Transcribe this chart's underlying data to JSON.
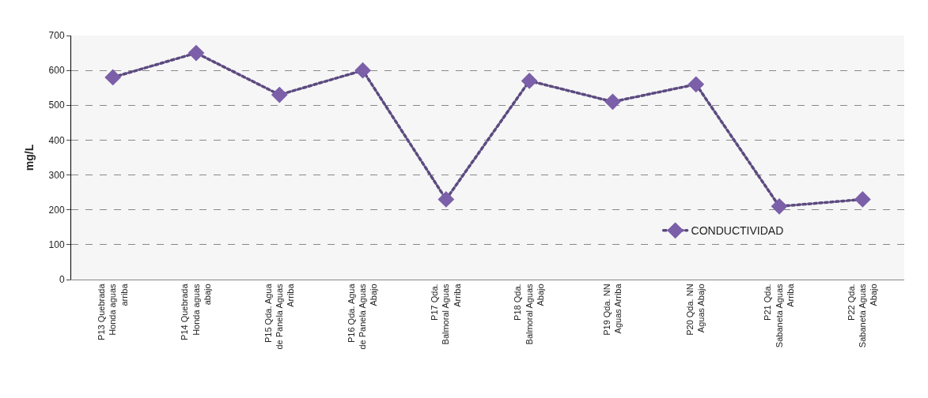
{
  "chart_data": {
    "type": "line",
    "ylabel": "mg/L",
    "categories": [
      "P13 Quebrada Honda aguas arriba",
      "P14 Quebrada Honda aguas abajo",
      "P15 Qda. Agua de Panela Aguas Arriba",
      "P16 Qda. Agua de Panela Aguas Abajo",
      "P17 Qda. Balmoral Aguas Arriba",
      "P18 Qda. Balmoral Aguas Abajo",
      "P19 Qda. NN Aguas Arriba",
      "P20 Qda. NN Aguas Abajo",
      "P21 Qda. Sabaneta Aguas Arriba",
      "P22 Qda. Sabaneta Aguas Abajo"
    ],
    "series": [
      {
        "name": "CONDUCTIVIDAD",
        "color": "#7b5fa8",
        "values": [
          580,
          650,
          530,
          600,
          230,
          570,
          510,
          560,
          210,
          230
        ]
      }
    ],
    "ylim": [
      0,
      700
    ],
    "yticks": [
      0,
      100,
      200,
      300,
      400,
      500,
      600,
      700
    ],
    "grid": "y",
    "legend": "bottom right",
    "marker": "diamond",
    "line_style": "dotted"
  }
}
